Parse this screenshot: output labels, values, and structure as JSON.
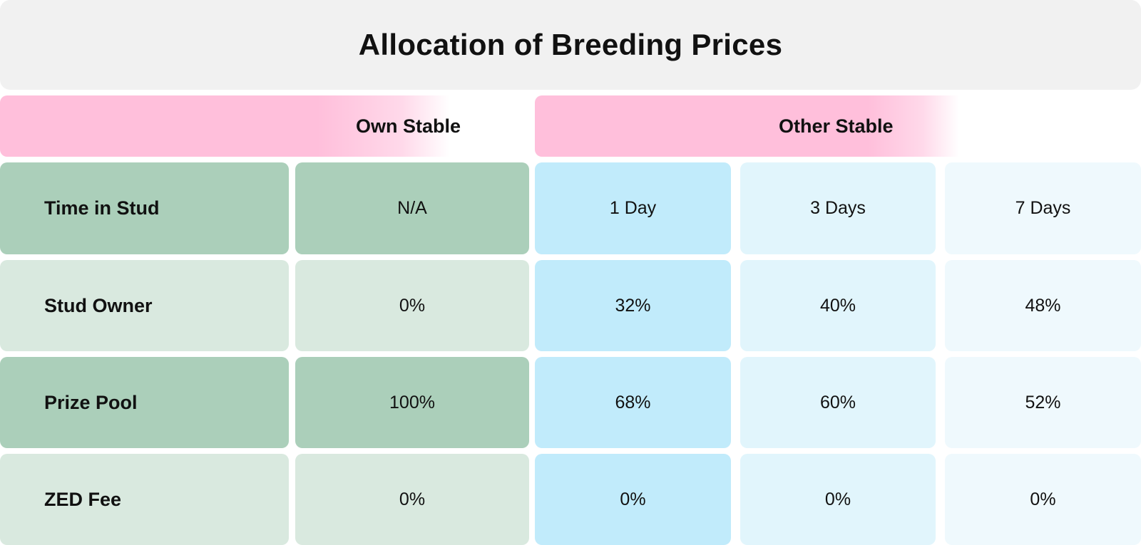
{
  "title": "Allocation of Breeding Prices",
  "group_headers": {
    "own": "Own Stable",
    "other": "Other Stable"
  },
  "rows": [
    {
      "label": "Time in Stud",
      "own": "N/A",
      "other": [
        "1 Day",
        "3 Days",
        "7 Days"
      ]
    },
    {
      "label": "Stud Owner",
      "own": "0%",
      "other": [
        "32%",
        "40%",
        "48%"
      ]
    },
    {
      "label": "Prize Pool",
      "own": "100%",
      "other": [
        "68%",
        "60%",
        "52%"
      ]
    },
    {
      "label": "ZED Fee",
      "own": "0%",
      "other": [
        "0%",
        "0%",
        "0%"
      ]
    }
  ],
  "colors": {
    "title_bg": "#f1f1f1",
    "header_pink": "#ffbfdb",
    "green_dark": "#abcfba",
    "green_light": "#d9e9df",
    "blue_1_day": "#c1ebfb",
    "blue_3_days": "#e1f5fc",
    "blue_7_days": "#eff9fd"
  }
}
